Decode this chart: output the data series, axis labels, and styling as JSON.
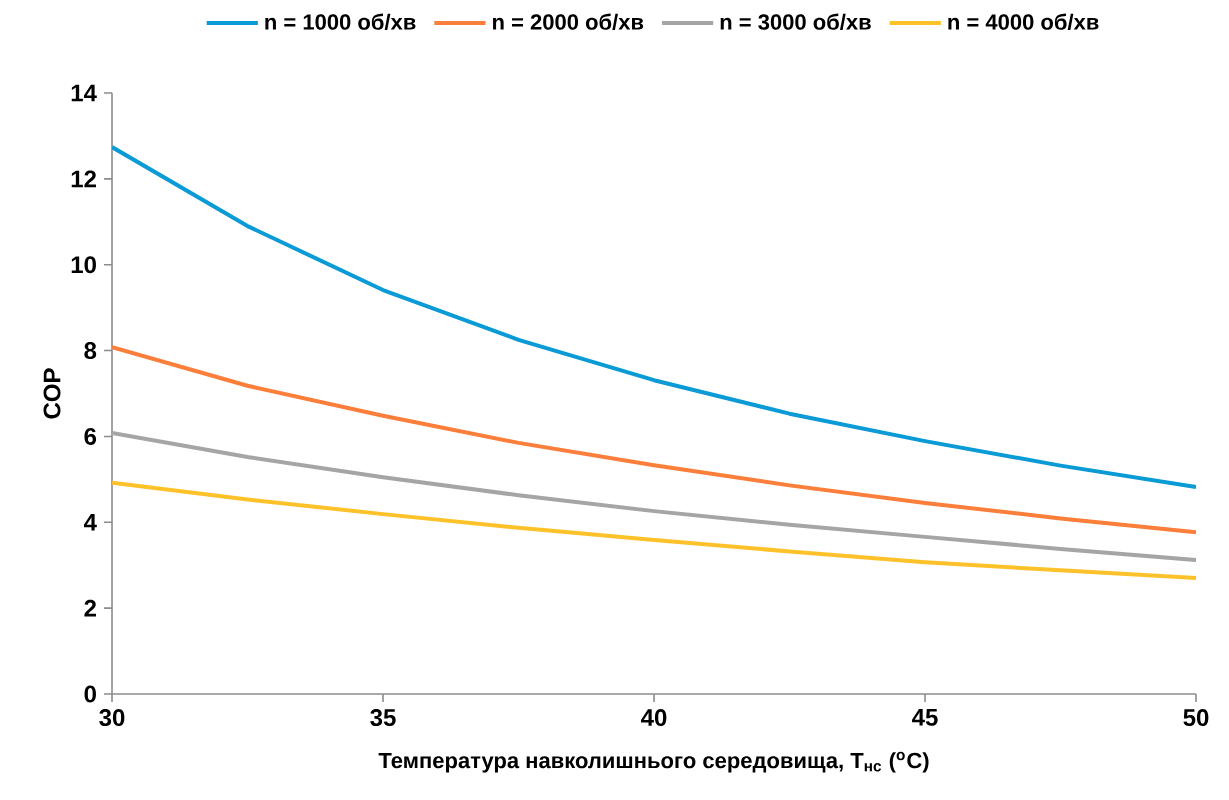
{
  "chart_data": {
    "type": "line",
    "xlabel": "Температура навколишнього середовища, T$_{нс}$ ($^{o}$C)",
    "ylabel": "COP",
    "x": [
      30,
      32.5,
      35,
      37.5,
      40,
      42.5,
      45,
      47.5,
      50
    ],
    "series": [
      {
        "name": "n = 1000 об/хв",
        "color": "#0a9ad6",
        "values": [
          12.74,
          10.9,
          9.41,
          8.25,
          7.31,
          6.53,
          5.89,
          5.32,
          4.82
        ]
      },
      {
        "name": "n = 2000 об/хв",
        "color": "#fb7e3a",
        "values": [
          8.08,
          7.18,
          6.48,
          5.85,
          5.33,
          4.86,
          4.45,
          4.09,
          3.77
        ]
      },
      {
        "name": "n = 3000 об/хв",
        "color": "#a5a5a5",
        "values": [
          6.08,
          5.52,
          5.05,
          4.63,
          4.26,
          3.94,
          3.66,
          3.38,
          3.12
        ]
      },
      {
        "name": "n = 4000 об/хв",
        "color": "#fdc12a",
        "values": [
          4.92,
          4.53,
          4.19,
          3.87,
          3.59,
          3.32,
          3.07,
          2.88,
          2.7
        ]
      }
    ],
    "xlim": [
      30,
      50
    ],
    "xticks": [
      30,
      35,
      40,
      45,
      50
    ],
    "ylim": [
      0,
      14
    ],
    "yticks": [
      0,
      2,
      4,
      6,
      8,
      10,
      12,
      14
    ],
    "grid": false,
    "legend": "top",
    "marker": "none",
    "line_style": "solid"
  }
}
